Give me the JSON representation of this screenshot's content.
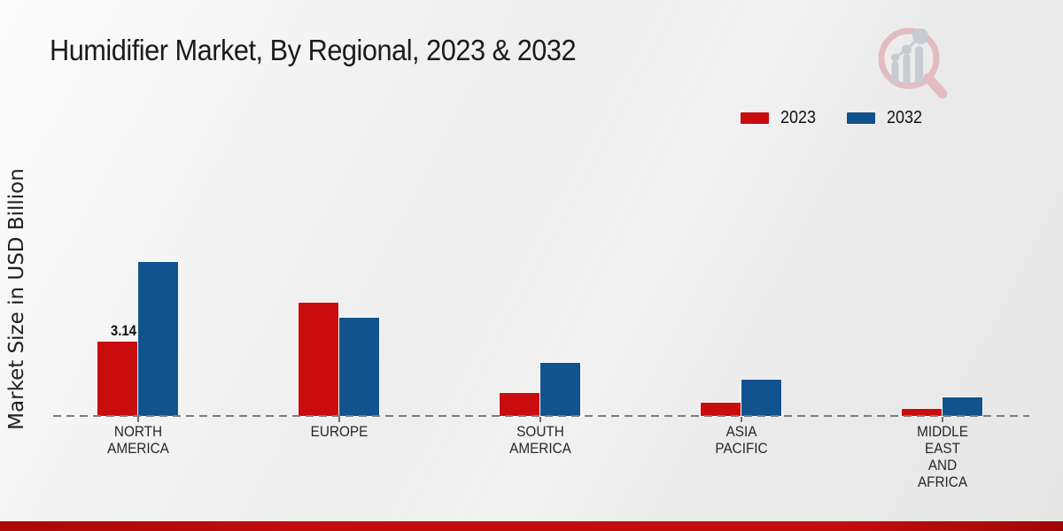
{
  "page": {
    "title": "Humidifier Market, By Regional, 2023 & 2032",
    "y_axis_label": "Market Size in USD Billion",
    "colors": {
      "series_2023": "#c90d0e",
      "series_2032": "#11538e",
      "baseline": "#7c7c7c",
      "footer_band": "#c30c0c",
      "title_text": "#1b1b1b",
      "label_text": "#262626",
      "logo_ring_pink": "#e2bcc1",
      "logo_bars_gray": "#c8cbd1"
    }
  },
  "legend": {
    "position": "top-right",
    "items": [
      {
        "label": "2023",
        "color": "#c90d0e"
      },
      {
        "label": "2032",
        "color": "#11538e"
      }
    ]
  },
  "chart_data": {
    "type": "bar",
    "title": "Humidifier Market, By Regional, 2023 & 2032",
    "xlabel": "",
    "ylabel": "Market Size in USD Billion",
    "ylim": [
      0,
      8
    ],
    "grid": false,
    "legend_position": "top-right",
    "categories": [
      "NORTH\nAMERICA",
      "EUROPE",
      "SOUTH\nAMERICA",
      "ASIA\nPACIFIC",
      "MIDDLE\nEAST\nAND\nAFRICA"
    ],
    "series": [
      {
        "name": "2023",
        "color": "#c90d0e",
        "values": [
          3.14,
          4.79,
          0.97,
          0.56,
          0.3
        ]
      },
      {
        "name": "2032",
        "color": "#11538e",
        "values": [
          6.5,
          4.15,
          2.24,
          1.53,
          0.79
        ]
      }
    ],
    "annotations": [
      {
        "series": "2023",
        "category_index": 0,
        "text": "3.14"
      }
    ]
  }
}
